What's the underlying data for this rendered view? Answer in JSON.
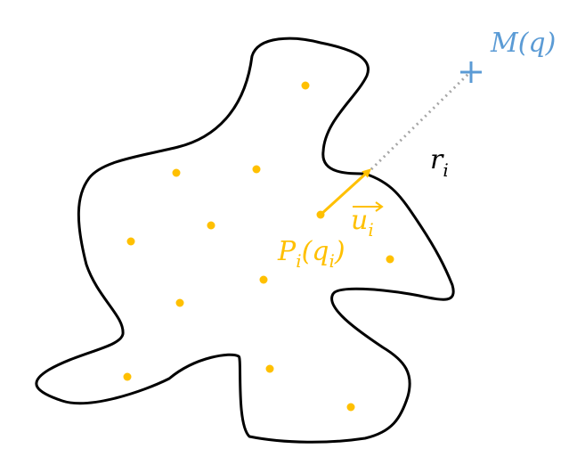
{
  "colors": {
    "outline": "#000000",
    "points": "#ffc000",
    "vector": "#ffc000",
    "target": "#5b9bd5",
    "ray": "#a6a6a6",
    "background": "#ffffff"
  },
  "labels": {
    "target_main": "M(q)",
    "distance_main": "r",
    "distance_sub": "i",
    "vector_main": "u",
    "vector_sub": "i",
    "point_main_1": "P",
    "point_sub_1": "i",
    "point_main_2": "(q",
    "point_sub_2": "i",
    "point_main_3": ")"
  },
  "icons": {
    "target_marker": "plus-icon",
    "vector_arrow": "arrow-icon",
    "vector_overline_arrow": "overline-arrow-icon"
  }
}
